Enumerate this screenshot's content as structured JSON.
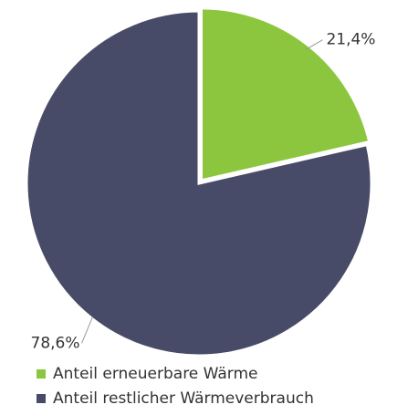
{
  "chart_data": {
    "type": "pie",
    "categories": [
      "Anteil erneuerbare Wärme",
      "Anteil restlicher Wärmeverbrauch"
    ],
    "values": [
      21.4,
      78.6
    ],
    "value_labels": [
      "21,4%",
      "78,6%"
    ],
    "colors": [
      "#8cc63e",
      "#484b67"
    ],
    "legend": "bottom"
  }
}
